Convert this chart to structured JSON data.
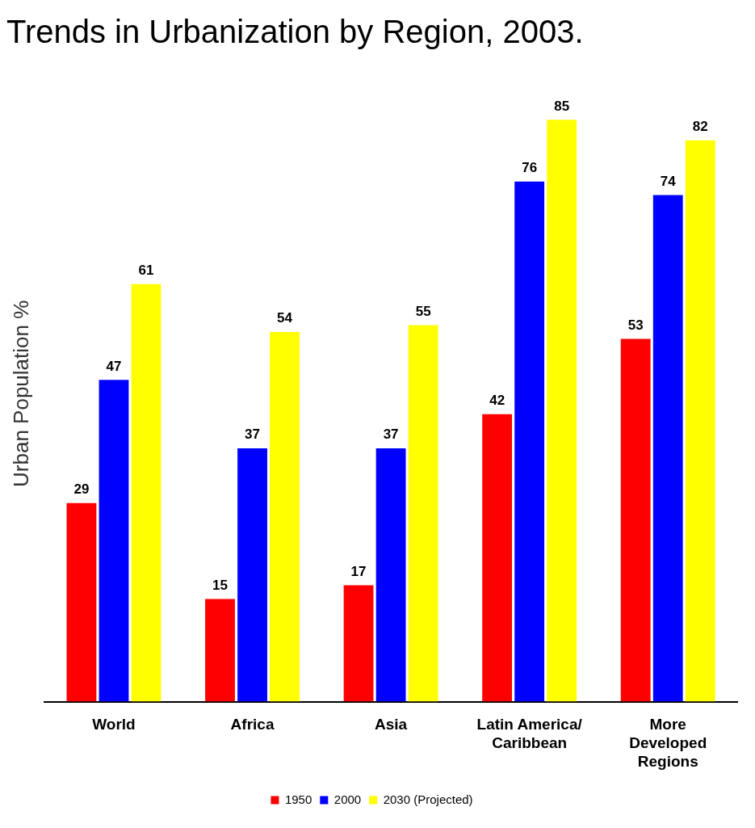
{
  "chart_data": {
    "type": "bar",
    "title": "Trends in Urbanization by Region, 2003.",
    "ylabel": "Urban Population %",
    "categories": [
      "World",
      "Africa",
      "Asia",
      "Latin America/\nCaribbean",
      "More\nDeveloped\nRegions"
    ],
    "series": [
      {
        "name": "1950",
        "color": "#ff0000",
        "values": [
          29,
          15,
          17,
          42,
          53
        ]
      },
      {
        "name": "2000",
        "color": "#0000ff",
        "values": [
          47,
          37,
          37,
          76,
          74
        ]
      },
      {
        "name": "2030 (Projected)",
        "color": "#ffff00",
        "values": [
          61,
          54,
          55,
          85,
          82
        ]
      }
    ],
    "data_labels": true,
    "legend": "bottom",
    "grid": false
  }
}
